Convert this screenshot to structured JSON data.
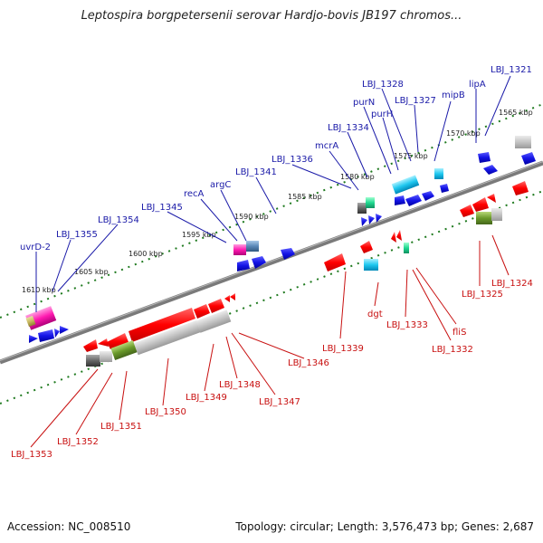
{
  "title": "Leptospira borgpetersenii serovar Hardjo-bovis JB197 chromos...",
  "accession": "Accession: NC_008510",
  "summary": "Topology: circular; Length: 3,576,473 bp; Genes: 2,687",
  "ticks": [
    "1610 kbp",
    "1605 kbp",
    "1600 kbp",
    "1595 kbp",
    "1590 kbp",
    "1585 kbp",
    "1580 kbp",
    "1575 kbp",
    "1570 kbp",
    "1565 kbp"
  ],
  "genes_forward": [
    "uvrD-2",
    "LBJ_1355",
    "LBJ_1354",
    "LBJ_1345",
    "recA",
    "argC",
    "LBJ_1341",
    "LBJ_1336",
    "mcrA",
    "LBJ_1334",
    "purN",
    "LBJ_1328",
    "purH",
    "LBJ_1327",
    "mipB",
    "lipA",
    "LBJ_1321"
  ],
  "genes_reverse": [
    "LBJ_1353",
    "LBJ_1352",
    "LBJ_1351",
    "LBJ_1350",
    "LBJ_1349",
    "LBJ_1348",
    "LBJ_1347",
    "LBJ_1346",
    "LBJ_1339",
    "dgt",
    "LBJ_1333",
    "LBJ_1332",
    "fliS",
    "LBJ_1325",
    "LBJ_1324"
  ],
  "colors": {
    "forward_label": "#1a1aa8",
    "reverse_label": "#c81010",
    "backbone": "#808080",
    "tick_green": "#1f7a1f"
  }
}
